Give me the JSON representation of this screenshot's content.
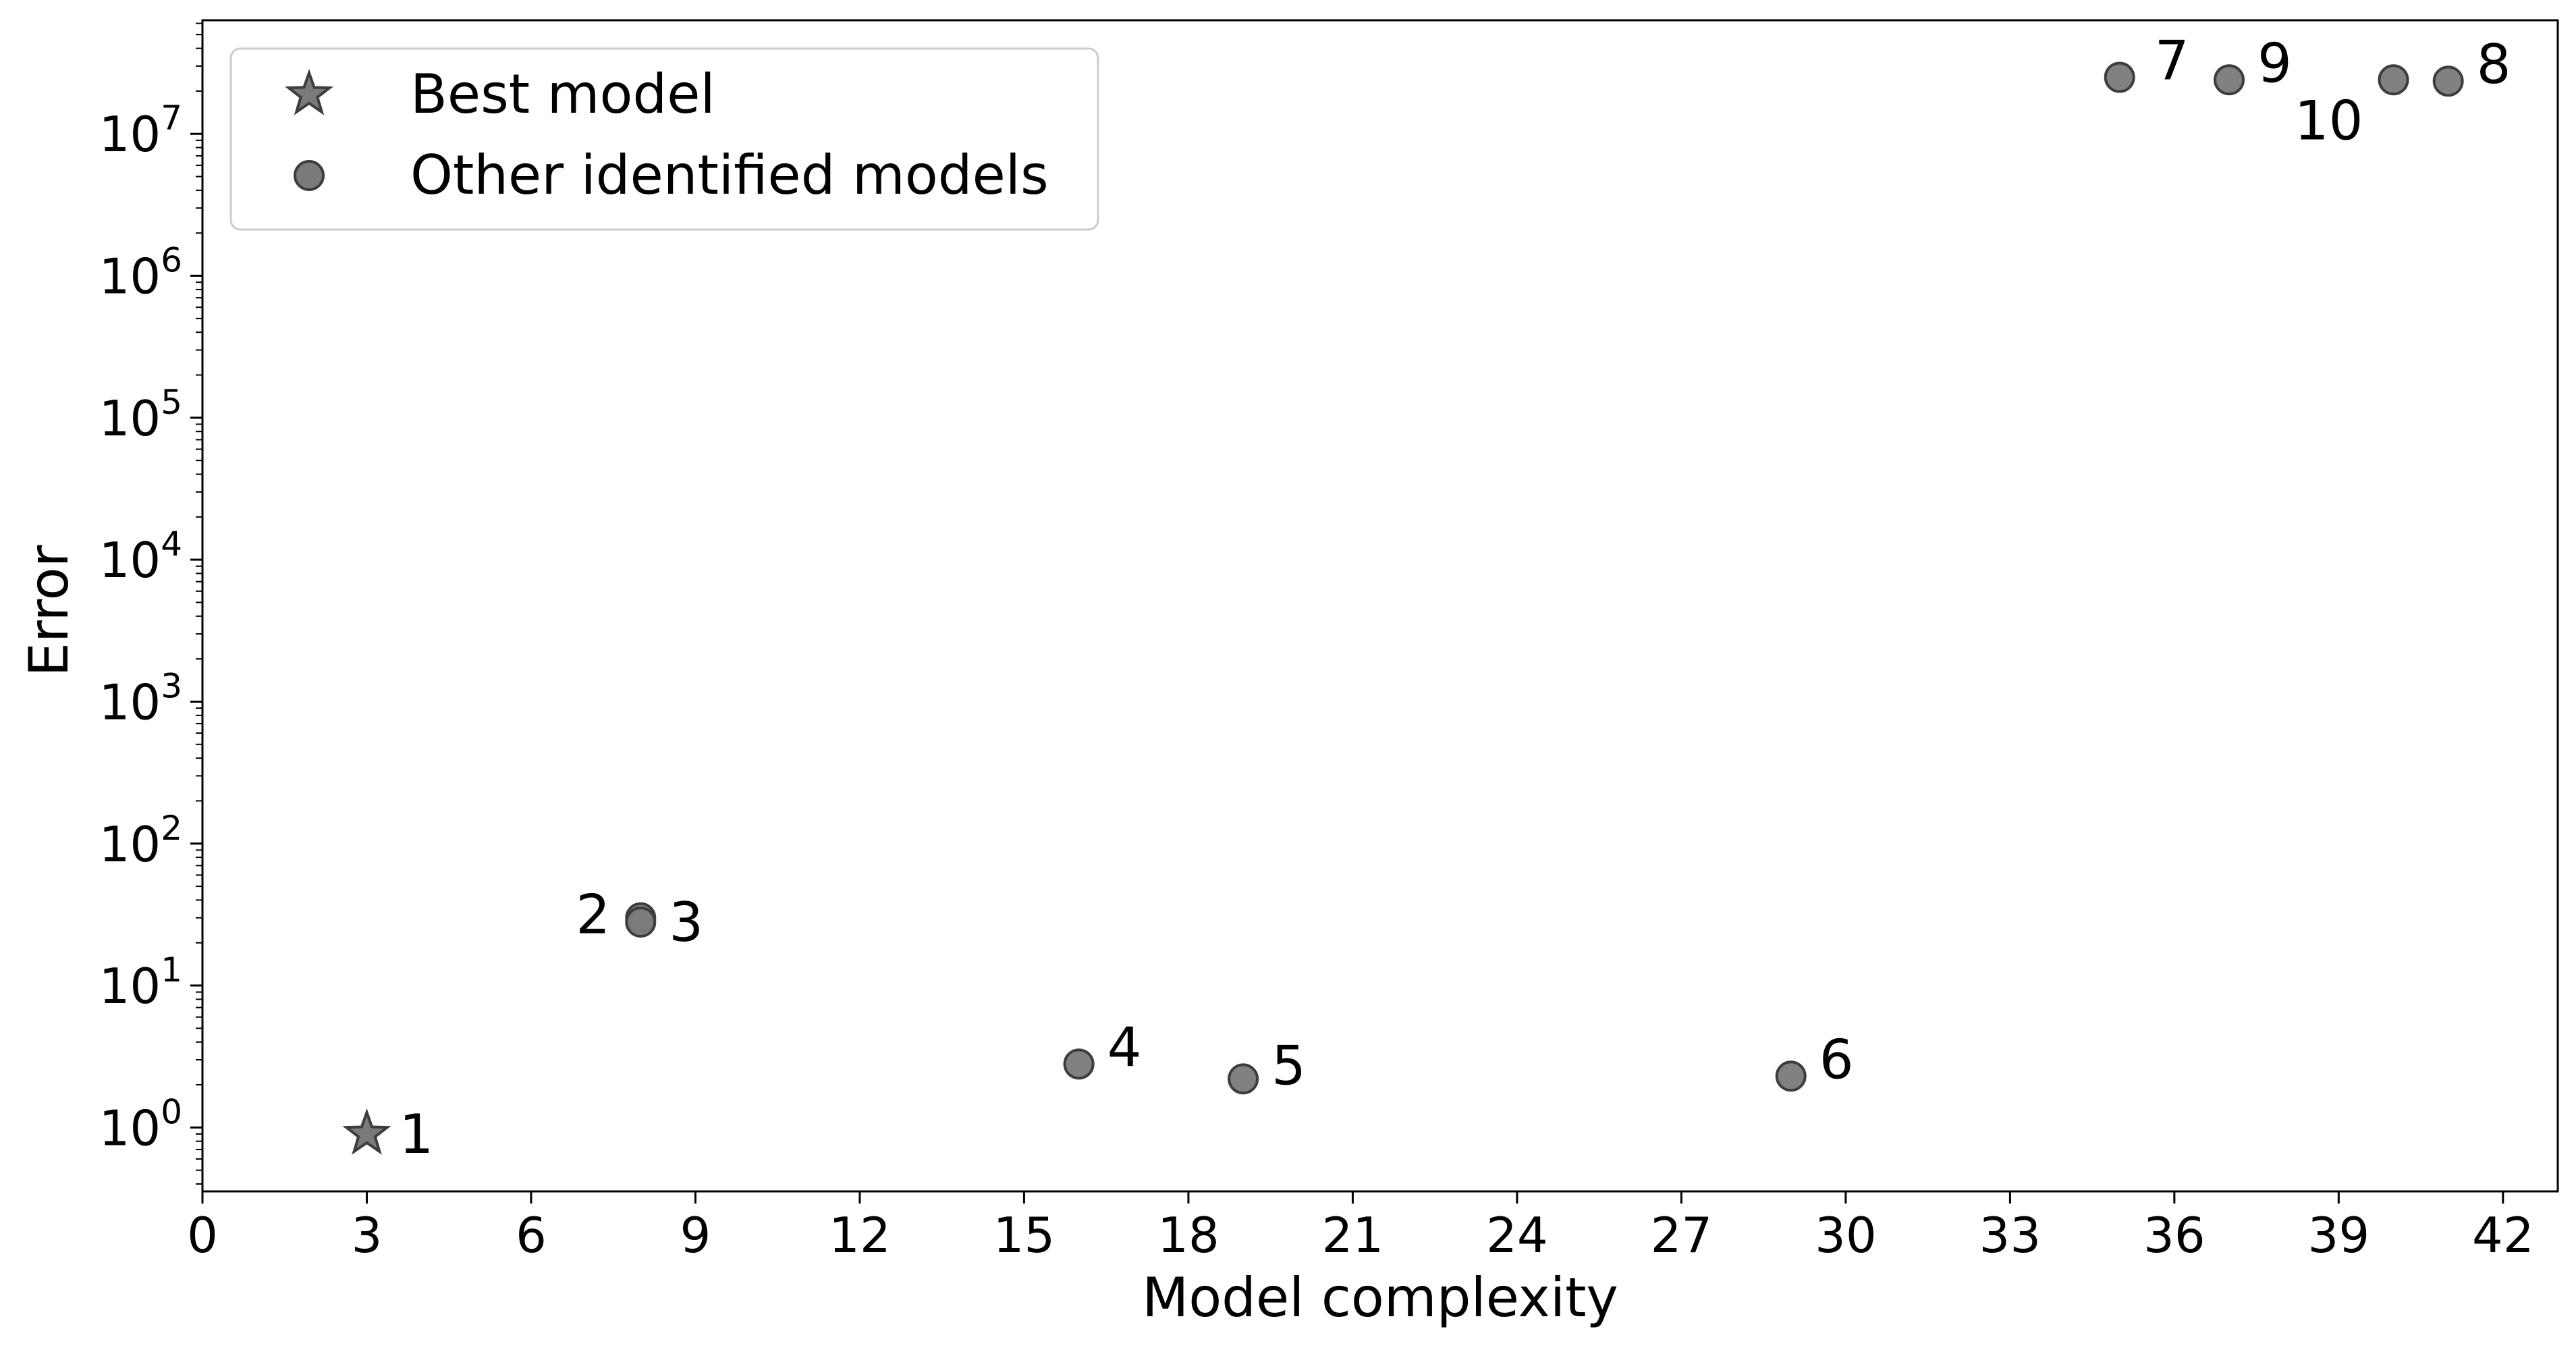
{
  "chart_data": {
    "type": "scatter",
    "title": "",
    "xlabel": "Model complexity",
    "ylabel": "Error",
    "xlim": [
      0,
      43
    ],
    "ylim_log10": [
      -0.45,
      7.8
    ],
    "y_scale": "log",
    "grid": false,
    "legend_position": "top-left",
    "x_ticks": [
      0,
      3,
      6,
      9,
      12,
      15,
      18,
      21,
      24,
      27,
      30,
      33,
      36,
      39,
      42
    ],
    "x_tick_labels": [
      "0",
      "3",
      "6",
      "9",
      "12",
      "15",
      "18",
      "21",
      "24",
      "27",
      "30",
      "33",
      "36",
      "39",
      "42"
    ],
    "y_ticks_exponent": [
      0,
      1,
      2,
      3,
      4,
      5,
      6,
      7
    ],
    "y_tick_base": "10",
    "legend": [
      {
        "label": "Best model",
        "marker": "star"
      },
      {
        "label": "Other identified models",
        "marker": "circle"
      }
    ],
    "points": [
      {
        "label": "1",
        "x": 3,
        "y": 0.9,
        "marker": "star"
      },
      {
        "label": "2",
        "x": 8,
        "y": 30,
        "marker": "circle"
      },
      {
        "label": "3",
        "x": 8,
        "y": 28,
        "marker": "circle"
      },
      {
        "label": "4",
        "x": 16,
        "y": 2.8,
        "marker": "circle"
      },
      {
        "label": "5",
        "x": 19,
        "y": 2.2,
        "marker": "circle"
      },
      {
        "label": "6",
        "x": 29,
        "y": 2.3,
        "marker": "circle"
      },
      {
        "label": "7",
        "x": 35,
        "y": 25000000,
        "marker": "circle"
      },
      {
        "label": "8",
        "x": 41,
        "y": 23500000,
        "marker": "circle"
      },
      {
        "label": "9",
        "x": 37,
        "y": 24000000,
        "marker": "circle"
      },
      {
        "label": "10",
        "x": 40,
        "y": 24000000,
        "marker": "circle"
      }
    ],
    "colors": {
      "marker_fill": "#7a7a7a",
      "marker_edge": "#3d3d3d",
      "axis": "#000000"
    }
  }
}
